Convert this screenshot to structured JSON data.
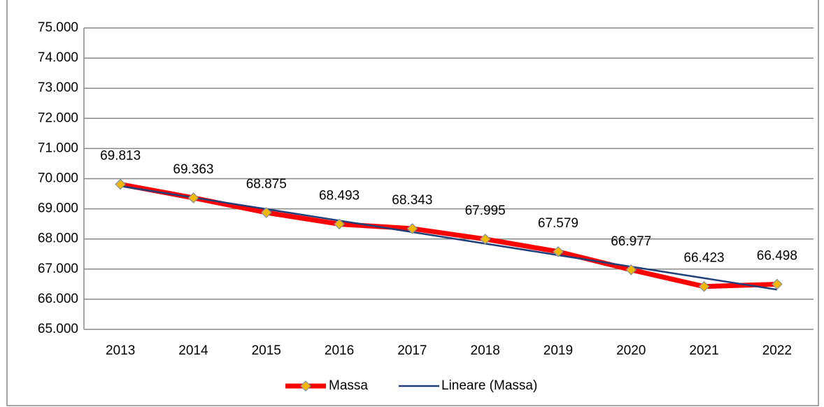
{
  "chart_data": {
    "type": "line",
    "categories": [
      "2013",
      "2014",
      "2015",
      "2016",
      "2017",
      "2018",
      "2019",
      "2020",
      "2021",
      "2022"
    ],
    "series": [
      {
        "name": "Massa",
        "color": "#ff0000",
        "marker_color": "#f5b800",
        "values": [
          69813,
          69363,
          68875,
          68493,
          68343,
          67995,
          67579,
          66977,
          66423,
          66498
        ],
        "value_labels": [
          "69.813",
          "69.363",
          "68.875",
          "68.493",
          "68.343",
          "67.995",
          "67.579",
          "66.977",
          "66.423",
          "66.498"
        ]
      },
      {
        "name": "Lineare (Massa)",
        "color": "#1f3f7a",
        "values": [
          69754,
          69372,
          68990,
          68609,
          68227,
          67845,
          67463,
          67081,
          66700,
          66318
        ]
      }
    ],
    "ylim": [
      65000,
      75000
    ],
    "yticks": [
      {
        "value": 65000,
        "label": "65.000"
      },
      {
        "value": 66000,
        "label": "66.000"
      },
      {
        "value": 67000,
        "label": "67.000"
      },
      {
        "value": 68000,
        "label": "68.000"
      },
      {
        "value": 69000,
        "label": "69.000"
      },
      {
        "value": 70000,
        "label": "70.000"
      },
      {
        "value": 71000,
        "label": "71.000"
      },
      {
        "value": 72000,
        "label": "72.000"
      },
      {
        "value": 73000,
        "label": "73.000"
      },
      {
        "value": 74000,
        "label": "74.000"
      },
      {
        "value": 75000,
        "label": "75.000"
      }
    ],
    "grid": true,
    "legend": "bottom"
  }
}
